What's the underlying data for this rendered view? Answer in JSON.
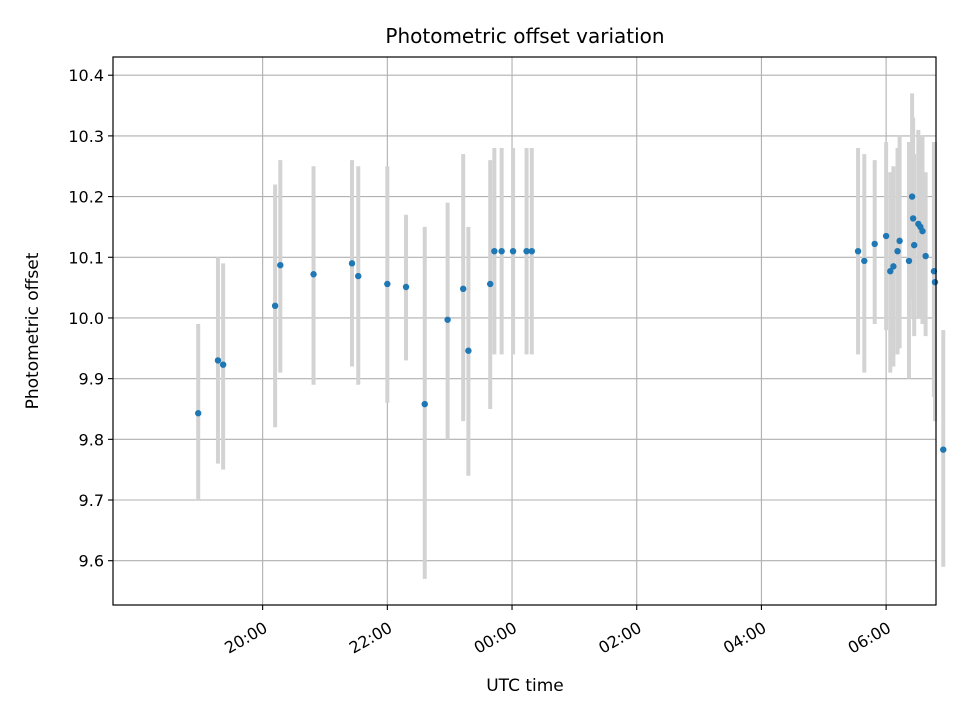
{
  "chart_data": {
    "type": "scatter",
    "title": "Photometric offset variation",
    "xlabel": "UTC time",
    "ylabel": "Photometric offset",
    "xlim_hours": [
      17.6,
      30.8
    ],
    "ylim": [
      9.527,
      10.43
    ],
    "grid": true,
    "x_tick_labels": [
      "20:00",
      "22:00",
      "00:00",
      "02:00",
      "04:00",
      "06:00"
    ],
    "y_tick_labels": [
      "9.6",
      "9.7",
      "9.8",
      "9.9",
      "10.0",
      "10.1",
      "10.2",
      "10.3",
      "10.4"
    ],
    "colors": {
      "point": "#1f77b4",
      "errorbar": "#d3d3d3",
      "grid": "#b0b0b0"
    },
    "points": [
      {
        "t": "18:58",
        "y": 9.843,
        "lo": 9.7,
        "hi": 9.99
      },
      {
        "t": "19:17",
        "y": 9.93,
        "lo": 9.76,
        "hi": 10.1
      },
      {
        "t": "19:22",
        "y": 9.923,
        "lo": 9.75,
        "hi": 10.09
      },
      {
        "t": "20:12",
        "y": 10.02,
        "lo": 9.82,
        "hi": 10.22
      },
      {
        "t": "20:17",
        "y": 10.087,
        "lo": 9.91,
        "hi": 10.26
      },
      {
        "t": "20:49",
        "y": 10.072,
        "lo": 9.89,
        "hi": 10.25
      },
      {
        "t": "21:26",
        "y": 10.09,
        "lo": 9.92,
        "hi": 10.26
      },
      {
        "t": "21:32",
        "y": 10.069,
        "lo": 9.89,
        "hi": 10.25
      },
      {
        "t": "22:00",
        "y": 10.056,
        "lo": 9.86,
        "hi": 10.25
      },
      {
        "t": "22:18",
        "y": 10.051,
        "lo": 9.93,
        "hi": 10.17
      },
      {
        "t": "22:36",
        "y": 9.858,
        "lo": 9.57,
        "hi": 10.15
      },
      {
        "t": "22:58",
        "y": 9.997,
        "lo": 9.8,
        "hi": 10.19
      },
      {
        "t": "23:13",
        "y": 10.048,
        "lo": 9.83,
        "hi": 10.27
      },
      {
        "t": "23:18",
        "y": 9.946,
        "lo": 9.74,
        "hi": 10.15
      },
      {
        "t": "23:39",
        "y": 10.056,
        "lo": 9.85,
        "hi": 10.26
      },
      {
        "t": "23:43",
        "y": 10.11,
        "lo": 9.94,
        "hi": 10.28
      },
      {
        "t": "23:50",
        "y": 10.11,
        "lo": 9.94,
        "hi": 10.28
      },
      {
        "t": "00:01",
        "y": 10.11,
        "lo": 9.94,
        "hi": 10.28
      },
      {
        "t": "00:14",
        "y": 10.11,
        "lo": 9.94,
        "hi": 10.28
      },
      {
        "t": "00:19",
        "y": 10.11,
        "lo": 9.94,
        "hi": 10.28
      },
      {
        "t": "05:33",
        "y": 10.11,
        "lo": 9.94,
        "hi": 10.28
      },
      {
        "t": "05:39",
        "y": 10.094,
        "lo": 9.91,
        "hi": 10.27
      },
      {
        "t": "05:49",
        "y": 10.122,
        "lo": 9.99,
        "hi": 10.26
      },
      {
        "t": "06:00",
        "y": 10.135,
        "lo": 9.98,
        "hi": 10.29
      },
      {
        "t": "06:04",
        "y": 10.077,
        "lo": 9.91,
        "hi": 10.24
      },
      {
        "t": "06:07",
        "y": 10.085,
        "lo": 9.92,
        "hi": 10.25
      },
      {
        "t": "06:11",
        "y": 10.11,
        "lo": 9.94,
        "hi": 10.28
      },
      {
        "t": "06:13",
        "y": 10.127,
        "lo": 9.95,
        "hi": 10.3
      },
      {
        "t": "06:22",
        "y": 10.094,
        "lo": 9.9,
        "hi": 10.29
      },
      {
        "t": "06:25",
        "y": 10.2,
        "lo": 10.03,
        "hi": 10.37
      },
      {
        "t": "06:26",
        "y": 10.164,
        "lo": 10.0,
        "hi": 10.33
      },
      {
        "t": "06:27",
        "y": 10.12,
        "lo": 9.97,
        "hi": 10.27
      },
      {
        "t": "06:31",
        "y": 10.155,
        "lo": 10.0,
        "hi": 10.31
      },
      {
        "t": "06:33",
        "y": 10.15,
        "lo": 10.0,
        "hi": 10.3
      },
      {
        "t": "06:35",
        "y": 10.143,
        "lo": 9.99,
        "hi": 10.3
      },
      {
        "t": "06:38",
        "y": 10.102,
        "lo": 9.97,
        "hi": 10.24
      },
      {
        "t": "06:46",
        "y": 10.077,
        "lo": 9.87,
        "hi": 10.29
      },
      {
        "t": "06:47",
        "y": 10.059,
        "lo": 9.83,
        "hi": 10.29
      },
      {
        "t": "06:55",
        "y": 9.783,
        "lo": 9.59,
        "hi": 9.98
      }
    ]
  }
}
